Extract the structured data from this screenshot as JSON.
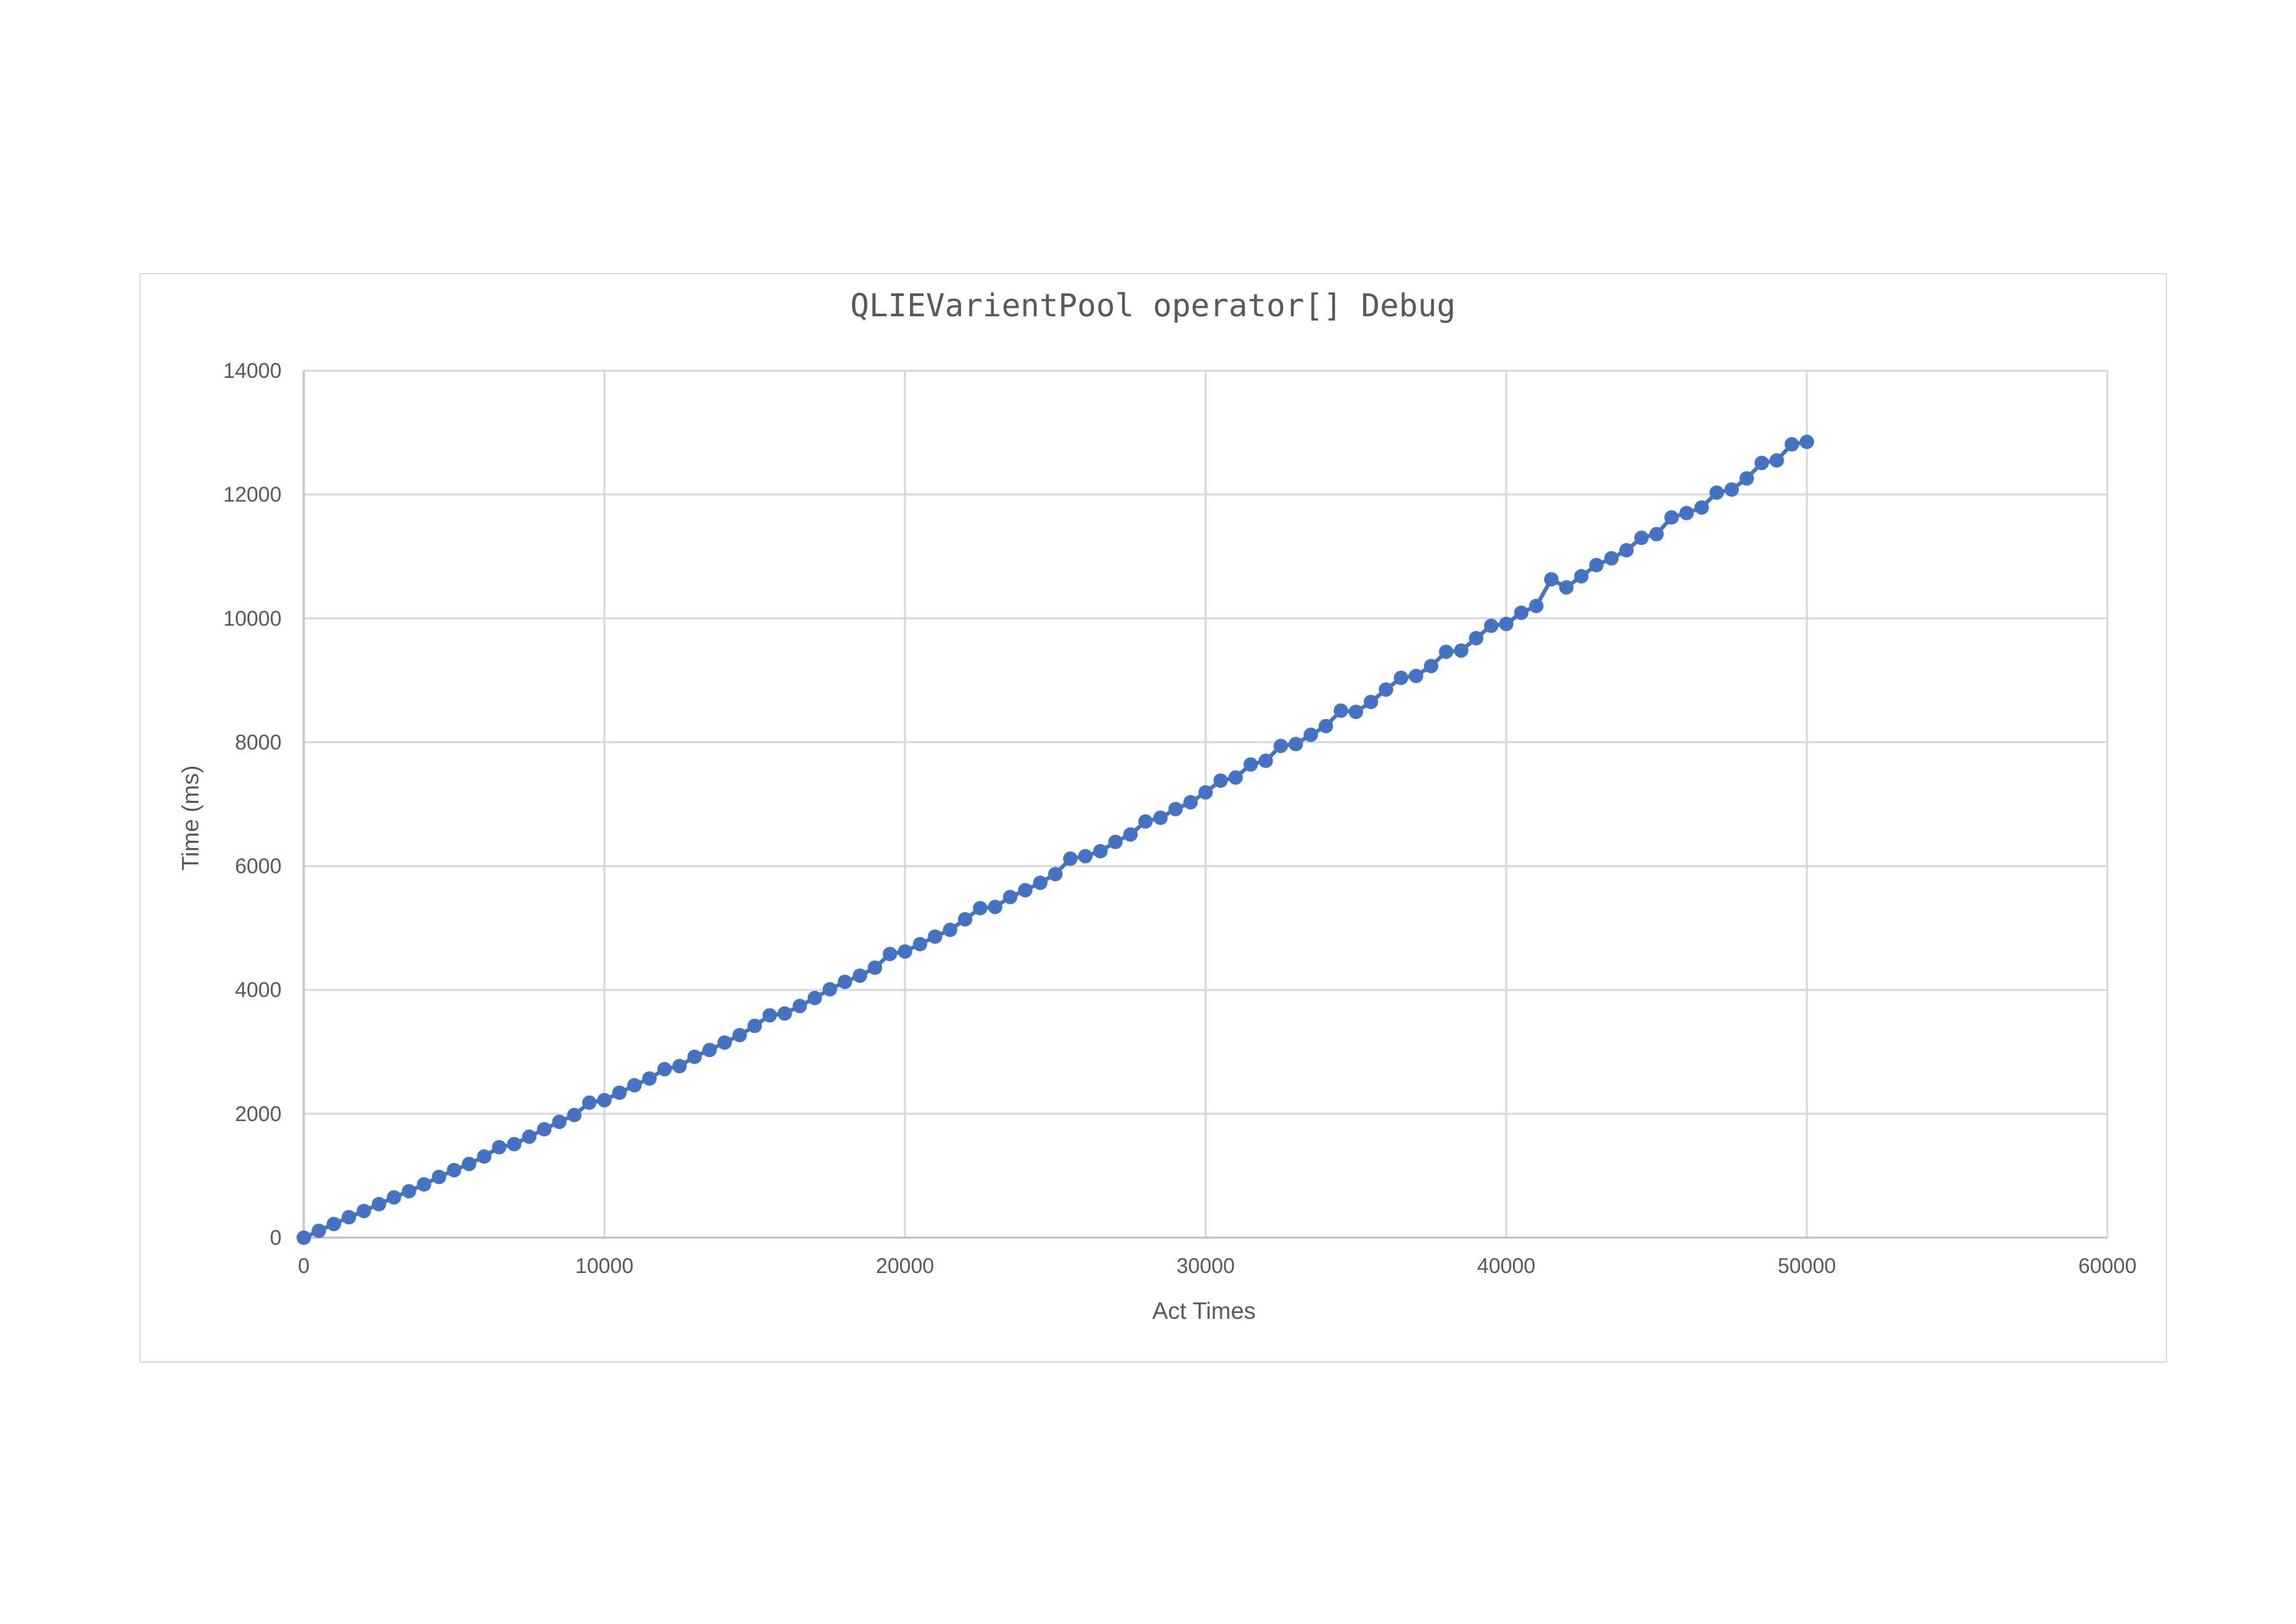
{
  "chart_data": {
    "type": "line",
    "title": "QLIEVarientPool operator[] Debug",
    "xlabel": "Act Times",
    "ylabel": "Time (ms)",
    "xlim": [
      0,
      60000
    ],
    "ylim": [
      0,
      14000
    ],
    "x_ticks": [
      "0",
      "10000",
      "20000",
      "30000",
      "40000",
      "50000",
      "60000"
    ],
    "y_ticks": [
      "0",
      "2000",
      "4000",
      "6000",
      "8000",
      "10000",
      "12000",
      "14000"
    ],
    "grid": true,
    "legend": "none",
    "marker": "circle",
    "series": [
      {
        "color": "#4472c4",
        "x": [
          0,
          500,
          1000,
          1500,
          2000,
          2500,
          3000,
          3500,
          4000,
          4500,
          5000,
          5500,
          6000,
          6500,
          7000,
          7500,
          8000,
          8500,
          9000,
          9500,
          10000,
          10500,
          11000,
          11500,
          12000,
          12500,
          13000,
          13500,
          14000,
          14500,
          15000,
          15500,
          16000,
          16500,
          17000,
          17500,
          18000,
          18500,
          19000,
          19500,
          20000,
          20500,
          21000,
          21500,
          22000,
          22500,
          23000,
          23500,
          24000,
          24500,
          25000,
          25500,
          26000,
          26500,
          27000,
          27500,
          28000,
          28500,
          29000,
          29500,
          30000,
          30500,
          31000,
          31500,
          32000,
          32500,
          33000,
          33500,
          34000,
          34500,
          35000,
          35500,
          36000,
          36500,
          37000,
          37500,
          38000,
          38500,
          39000,
          39500,
          40000,
          40500,
          41000,
          41500,
          42000,
          42500,
          43000,
          43500,
          44000,
          44500,
          45000,
          45500,
          46000,
          46500,
          47000,
          47500,
          48000,
          48500,
          49000,
          49500,
          50000
        ],
        "y": [
          0,
          110,
          220,
          330,
          430,
          540,
          650,
          750,
          860,
          980,
          1090,
          1190,
          1310,
          1460,
          1510,
          1630,
          1750,
          1870,
          1980,
          2180,
          2220,
          2340,
          2460,
          2570,
          2720,
          2770,
          2920,
          3030,
          3150,
          3270,
          3420,
          3590,
          3620,
          3740,
          3870,
          4010,
          4130,
          4230,
          4360,
          4580,
          4620,
          4740,
          4860,
          4970,
          5140,
          5320,
          5340,
          5500,
          5610,
          5730,
          5870,
          6120,
          6160,
          6240,
          6390,
          6510,
          6720,
          6780,
          6920,
          7030,
          7190,
          7380,
          7430,
          7640,
          7700,
          7940,
          7970,
          8120,
          8260,
          8510,
          8490,
          8650,
          8850,
          9040,
          9070,
          9230,
          9460,
          9480,
          9680,
          9880,
          9910,
          10090,
          10200,
          10630,
          10500,
          10680,
          10860,
          10970,
          11100,
          11300,
          11360,
          11630,
          11700,
          11790,
          12030,
          12080,
          12260,
          12510,
          12550,
          12810,
          12850
        ]
      }
    ]
  }
}
